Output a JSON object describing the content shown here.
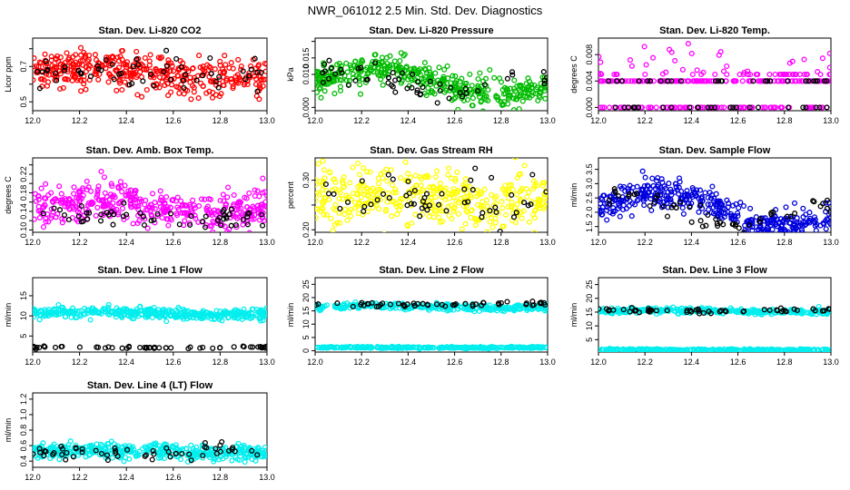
{
  "figure": {
    "title": "NWR_061012  2.5 Min. Std. Dev. Diagnostics"
  },
  "chart_data": [
    {
      "type": "scatter",
      "id": "co2",
      "title": "Stan. Dev. Li-820 CO2",
      "ylabel": "Licor ppm",
      "xlim": [
        12.0,
        13.0
      ],
      "ylim": [
        0.45,
        0.86
      ],
      "x_ticks": [
        "12.0",
        "12.2",
        "12.4",
        "12.6",
        "12.8",
        "13.0"
      ],
      "y_ticks": [
        0.5,
        0.6,
        0.7,
        0.8
      ],
      "y_tick_labels": [
        "0.5",
        "",
        "0.7",
        ""
      ],
      "series": [
        {
          "color": "#ff0000",
          "base": 0.66,
          "amp": 0.03,
          "noise": 0.055,
          "count": 400
        },
        {
          "color": "#000000",
          "base": 0.66,
          "amp": 0.02,
          "noise": 0.05,
          "count": 55
        }
      ]
    },
    {
      "type": "scatter",
      "id": "pressure",
      "title": "Stan. Dev. Li-820 Pressure",
      "ylabel": "kPa",
      "xlim": [
        12.0,
        13.0
      ],
      "ylim": [
        -0.001,
        0.021
      ],
      "x_ticks": [
        "12.0",
        "12.2",
        "12.4",
        "12.6",
        "12.8",
        "13.0"
      ],
      "y_ticks": [
        0,
        0.005,
        0.01,
        0.015,
        0.02
      ],
      "y_tick_labels": [
        "0.000",
        "",
        "0.010",
        "0.015",
        ""
      ],
      "series": [
        {
          "color": "#00bb00",
          "base": 0.008,
          "amp": 0.004,
          "noise": 0.0025,
          "count": 420
        },
        {
          "color": "#000000",
          "base": 0.008,
          "amp": 0.003,
          "noise": 0.002,
          "count": 55
        }
      ]
    },
    {
      "type": "scatter",
      "id": "temp",
      "title": "Stan. Dev. Li-820 Temp.",
      "ylabel": "degrees C",
      "xlim": [
        12.0,
        13.0
      ],
      "ylim": [
        -0.0005,
        0.0105
      ],
      "x_ticks": [
        "12.0",
        "12.2",
        "12.4",
        "12.6",
        "12.8",
        "13.0"
      ],
      "y_ticks": [
        0,
        0.004,
        0.008
      ],
      "y_tick_labels": [
        "0.000",
        "0.004",
        "0.008"
      ],
      "discrete_levels": [
        0,
        0.004
      ],
      "series": [
        {
          "color": "#ff00ff",
          "base": 0.003,
          "amp": 0.002,
          "noise": 0.002,
          "count": 300
        },
        {
          "color": "#000000",
          "base": 0.002,
          "amp": 0.001,
          "noise": 0.002,
          "count": 55
        }
      ]
    },
    {
      "type": "scatter",
      "id": "ambbox",
      "title": "Stan. Dev. Amb. Box Temp.",
      "ylabel": "degrees C",
      "xlim": [
        12.0,
        13.0
      ],
      "ylim": [
        0.095,
        0.255
      ],
      "x_ticks": [
        "12.0",
        "12.2",
        "12.4",
        "12.6",
        "12.8",
        "13.0"
      ],
      "y_ticks": [
        0.1,
        0.12,
        0.14,
        0.16,
        0.18,
        0.2,
        0.22,
        0.24
      ],
      "y_tick_labels": [
        "0.10",
        "",
        "0.14",
        "",
        "0.18",
        "",
        "0.22",
        ""
      ],
      "series": [
        {
          "color": "#ff00ff",
          "base": 0.15,
          "amp": 0.012,
          "noise": 0.02,
          "count": 400
        },
        {
          "color": "#000000",
          "base": 0.13,
          "amp": 0.008,
          "noise": 0.012,
          "count": 55
        }
      ]
    },
    {
      "type": "scatter",
      "id": "rh",
      "title": "Stan. Dev. Gas Stream RH",
      "ylabel": "percent",
      "xlim": [
        12.0,
        13.0
      ],
      "ylim": [
        0.195,
        0.345
      ],
      "x_ticks": [
        "12.0",
        "12.2",
        "12.4",
        "12.6",
        "12.8",
        "13.0"
      ],
      "y_ticks": [
        0.2,
        0.25,
        0.3
      ],
      "y_tick_labels": [
        "0.20",
        "",
        "0.30"
      ],
      "series": [
        {
          "color": "#ffff00",
          "base": 0.265,
          "amp": 0.01,
          "noise": 0.03,
          "count": 400
        },
        {
          "color": "#000000",
          "base": 0.262,
          "amp": 0.01,
          "noise": 0.025,
          "count": 55
        }
      ]
    },
    {
      "type": "scatter",
      "id": "sampleflow",
      "title": "Stan. Dev. Sample Flow",
      "ylabel": "ml/min",
      "xlim": [
        12.0,
        13.0
      ],
      "ylim": [
        1.3,
        3.9
      ],
      "x_ticks": [
        "12.0",
        "12.2",
        "12.4",
        "12.6",
        "12.8",
        "13.0"
      ],
      "y_ticks": [
        1.5,
        2.0,
        2.5,
        3.0,
        3.5
      ],
      "y_tick_labels": [
        "1.5",
        "2.0",
        "2.5",
        "3.0",
        "3.5"
      ],
      "series": [
        {
          "color": "#0000dd",
          "base": 2.1,
          "amp": 0.6,
          "noise": 0.25,
          "count": 420
        },
        {
          "color": "#000000",
          "base": 2.1,
          "amp": 0.5,
          "noise": 0.2,
          "count": 55
        }
      ]
    },
    {
      "type": "scatter",
      "id": "line1",
      "title": "Stan. Dev. Line 1 Flow",
      "ylabel": "ml/min",
      "xlim": [
        12.0,
        13.0
      ],
      "ylim": [
        1.0,
        19.5
      ],
      "x_ticks": [
        "12.0",
        "12.2",
        "12.4",
        "12.6",
        "12.8",
        "13.0"
      ],
      "y_ticks": [
        5,
        10,
        15
      ],
      "y_tick_labels": [
        "5",
        "10",
        "15"
      ],
      "series": [
        {
          "color": "#00eeee",
          "base": 10.6,
          "amp": 0.3,
          "noise": 0.7,
          "count": 400
        },
        {
          "color": "#000000",
          "base": 2.1,
          "amp": 0.05,
          "noise": 0.15,
          "count": 55
        }
      ]
    },
    {
      "type": "scatter",
      "id": "line2",
      "title": "Stan. Dev. Line 2 Flow",
      "ylabel": "ml/min",
      "xlim": [
        12.0,
        13.0
      ],
      "ylim": [
        -0.5,
        27.5
      ],
      "x_ticks": [
        "12.0",
        "12.2",
        "12.4",
        "12.6",
        "12.8",
        "13.0"
      ],
      "y_ticks": [
        0,
        5,
        10,
        15,
        20,
        25
      ],
      "y_tick_labels": [
        "0",
        "5",
        "10",
        "15",
        "20",
        "25"
      ],
      "series": [
        {
          "color": "#00eeee",
          "base": 16.5,
          "amp": 0.4,
          "noise": 0.6,
          "count": 300
        },
        {
          "color": "#00eeee",
          "base": 1.2,
          "amp": 0.05,
          "noise": 0.15,
          "count": 300
        },
        {
          "color": "#000000",
          "base": 17.5,
          "amp": 0.2,
          "noise": 0.4,
          "count": 55
        }
      ]
    },
    {
      "type": "scatter",
      "id": "line3",
      "title": "Stan. Dev. Line 3 Flow",
      "ylabel": "ml/min",
      "xlim": [
        12.0,
        13.0
      ],
      "ylim": [
        0.5,
        27.5
      ],
      "x_ticks": [
        "12.0",
        "12.2",
        "12.4",
        "12.6",
        "12.8",
        "13.0"
      ],
      "y_ticks": [
        5,
        10,
        15,
        20,
        25
      ],
      "y_tick_labels": [
        "5",
        "10",
        "15",
        "20",
        "25"
      ],
      "series": [
        {
          "color": "#00eeee",
          "base": 15.3,
          "amp": 0.3,
          "noise": 0.5,
          "count": 300
        },
        {
          "color": "#00eeee",
          "base": 1.3,
          "amp": 0.05,
          "noise": 0.15,
          "count": 300
        },
        {
          "color": "#000000",
          "base": 15.6,
          "amp": 0.2,
          "noise": 0.35,
          "count": 55
        }
      ]
    },
    {
      "type": "scatter",
      "id": "line4",
      "title": "Stan. Dev. Line 4 (LT) Flow",
      "ylabel": "ml/min",
      "xlim": [
        12.0,
        13.0
      ],
      "ylim": [
        0.32,
        1.28
      ],
      "x_ticks": [
        "12.0",
        "12.2",
        "12.4",
        "12.6",
        "12.8",
        "13.0"
      ],
      "y_ticks": [
        0.4,
        0.6,
        0.8,
        1.0,
        1.2
      ],
      "y_tick_labels": [
        "0.4",
        "0.6",
        "0.8",
        "1.0",
        "1.2"
      ],
      "series": [
        {
          "color": "#00eeee",
          "base": 0.52,
          "amp": 0.02,
          "noise": 0.05,
          "count": 400
        },
        {
          "color": "#000000",
          "base": 0.52,
          "amp": 0.02,
          "noise": 0.05,
          "count": 55
        }
      ]
    }
  ]
}
